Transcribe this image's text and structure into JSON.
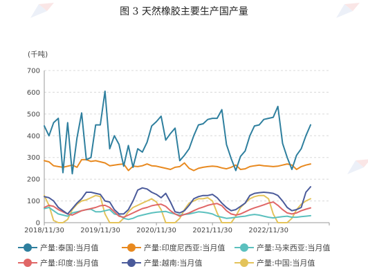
{
  "title": "图 3  天然橡胶主要生产国产量",
  "chart_data": {
    "type": "line",
    "unit_label": "(千吨)",
    "ylim": [
      0,
      700
    ],
    "yticks": [
      0,
      100,
      200,
      300,
      400,
      500,
      600,
      700
    ],
    "grid": true,
    "legend_position": "bottom",
    "x_start": "2018-11",
    "x_end": "2023-12",
    "xticks": [
      "2018/11/30",
      "2019/11/30",
      "2020/11/30",
      "2021/11/30",
      "2022/11/30"
    ],
    "series": [
      {
        "name": "产量:泰国:当月值",
        "color": "#2e7f9e",
        "values": [
          445,
          400,
          460,
          480,
          230,
          460,
          225,
          390,
          505,
          290,
          300,
          450,
          450,
          605,
          340,
          400,
          360,
          260,
          355,
          255,
          340,
          325,
          370,
          445,
          465,
          490,
          380,
          410,
          435,
          285,
          310,
          340,
          400,
          450,
          455,
          475,
          480,
          480,
          520,
          360,
          295,
          240,
          305,
          330,
          400,
          445,
          450,
          475,
          480,
          485,
          535,
          365,
          300,
          245,
          310,
          340,
          400,
          450
        ]
      },
      {
        "name": "产量:印度尼西亚:当月值",
        "color": "#e8891f",
        "values": [
          285,
          280,
          262,
          258,
          255,
          260,
          265,
          255,
          290,
          290,
          282,
          285,
          280,
          275,
          262,
          265,
          268,
          270,
          240,
          260,
          258,
          262,
          270,
          262,
          260,
          255,
          250,
          245,
          255,
          258,
          275,
          250,
          240,
          250,
          255,
          258,
          260,
          258,
          252,
          248,
          255,
          265,
          245,
          248,
          258,
          262,
          265,
          262,
          260,
          258,
          260,
          265,
          270,
          265,
          245,
          258,
          265,
          270
        ]
      },
      {
        "name": "产量:马来西亚:当月值",
        "color": "#5bc0be",
        "values": [
          65,
          70,
          55,
          40,
          35,
          30,
          45,
          50,
          55,
          60,
          62,
          50,
          50,
          55,
          60,
          40,
          35,
          20,
          15,
          20,
          30,
          35,
          40,
          45,
          48,
          50,
          52,
          45,
          40,
          35,
          38,
          40,
          45,
          50,
          48,
          45,
          40,
          30,
          25,
          20,
          22,
          25,
          28,
          30,
          35,
          38,
          35,
          30,
          25,
          22,
          25,
          28,
          30,
          25,
          25,
          28,
          30,
          32
        ]
      },
      {
        "name": "产量:印度:当月值",
        "color": "#e06666",
        "values": [
          70,
          80,
          75,
          60,
          50,
          40,
          35,
          45,
          55,
          60,
          65,
          70,
          78,
          80,
          70,
          50,
          30,
          25,
          35,
          45,
          55,
          65,
          70,
          78,
          82,
          85,
          75,
          55,
          40,
          30,
          38,
          45,
          55,
          65,
          72,
          80,
          85,
          88,
          78,
          55,
          40,
          35,
          40,
          50,
          60,
          68,
          75,
          82,
          90,
          95,
          80,
          60,
          45,
          40,
          45,
          55,
          62,
          68
        ]
      },
      {
        "name": "产量:越南:当月值",
        "color": "#4a5a9a",
        "values": [
          120,
          115,
          100,
          70,
          55,
          40,
          65,
          90,
          110,
          140,
          140,
          135,
          130,
          100,
          95,
          60,
          40,
          40,
          60,
          100,
          150,
          160,
          155,
          140,
          130,
          115,
          135,
          95,
          50,
          45,
          55,
          80,
          110,
          120,
          125,
          125,
          130,
          115,
          90,
          70,
          55,
          60,
          75,
          90,
          125,
          135,
          138,
          140,
          138,
          135,
          125,
          100,
          70,
          55,
          60,
          70,
          140,
          165
        ]
      },
      {
        "name": "产量:中国:当月值",
        "color": "#e3c35a",
        "values": [
          125,
          80,
          10,
          0,
          0,
          15,
          60,
          85,
          100,
          105,
          115,
          125,
          120,
          40,
          0,
          0,
          0,
          20,
          50,
          70,
          80,
          90,
          100,
          110,
          95,
          60,
          0,
          0,
          0,
          20,
          60,
          90,
          100,
          110,
          110,
          115,
          100,
          45,
          0,
          0,
          0,
          30,
          70,
          90,
          110,
          120,
          125,
          125,
          110,
          40,
          0,
          0,
          0,
          20,
          60,
          85,
          100,
          110
        ]
      }
    ]
  }
}
